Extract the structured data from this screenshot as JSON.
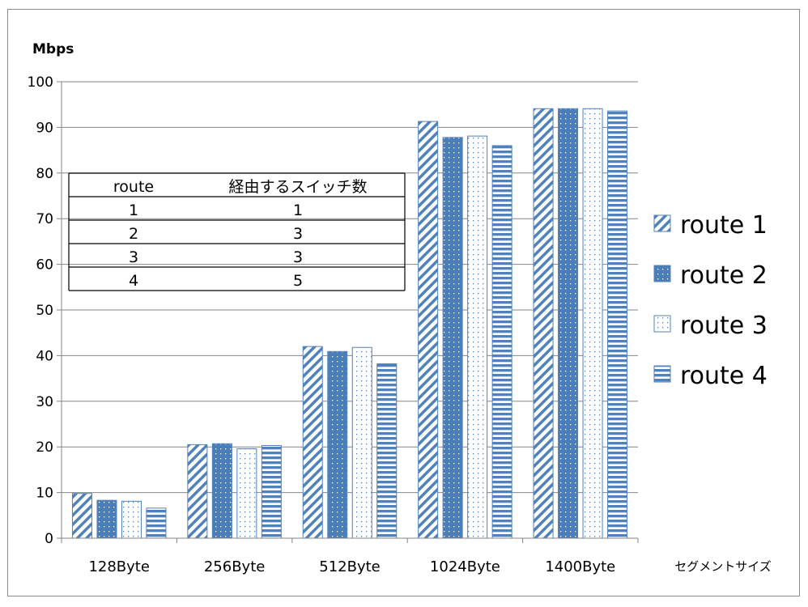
{
  "chart_data": {
    "type": "bar",
    "ylabel": "Mbps",
    "xlabel": "セグメントサイズ",
    "ylim": [
      0,
      100
    ],
    "yticks": [
      0,
      10,
      20,
      30,
      40,
      50,
      60,
      70,
      80,
      90,
      100
    ],
    "grid": true,
    "legend_position": "right",
    "categories": [
      "128Byte",
      "256Byte",
      "512Byte",
      "1024Byte",
      "1400Byte"
    ],
    "series": [
      {
        "name": "route 1",
        "values": [
          9.8,
          20.5,
          42.0,
          91.3,
          94.1
        ],
        "pattern": "diagonal-stripes"
      },
      {
        "name": "route 2",
        "values": [
          8.3,
          20.7,
          40.9,
          87.8,
          94.1
        ],
        "pattern": "dotted-solid"
      },
      {
        "name": "route 3",
        "values": [
          8.1,
          19.6,
          41.8,
          88.1,
          94.1
        ],
        "pattern": "light-dots"
      },
      {
        "name": "route 4",
        "values": [
          6.6,
          20.3,
          38.2,
          86.0,
          93.6
        ],
        "pattern": "horizontal-stripes"
      }
    ],
    "colors": {
      "bar": "#4f81bd",
      "bar_dark": "#4a7ebb",
      "axis": "#868686",
      "grid": "#868686"
    },
    "table": {
      "headers": [
        "route",
        "経由するスイッチ数"
      ],
      "rows": [
        [
          "1",
          "1"
        ],
        [
          "2",
          "3"
        ],
        [
          "3",
          "3"
        ],
        [
          "4",
          "5"
        ]
      ]
    }
  }
}
